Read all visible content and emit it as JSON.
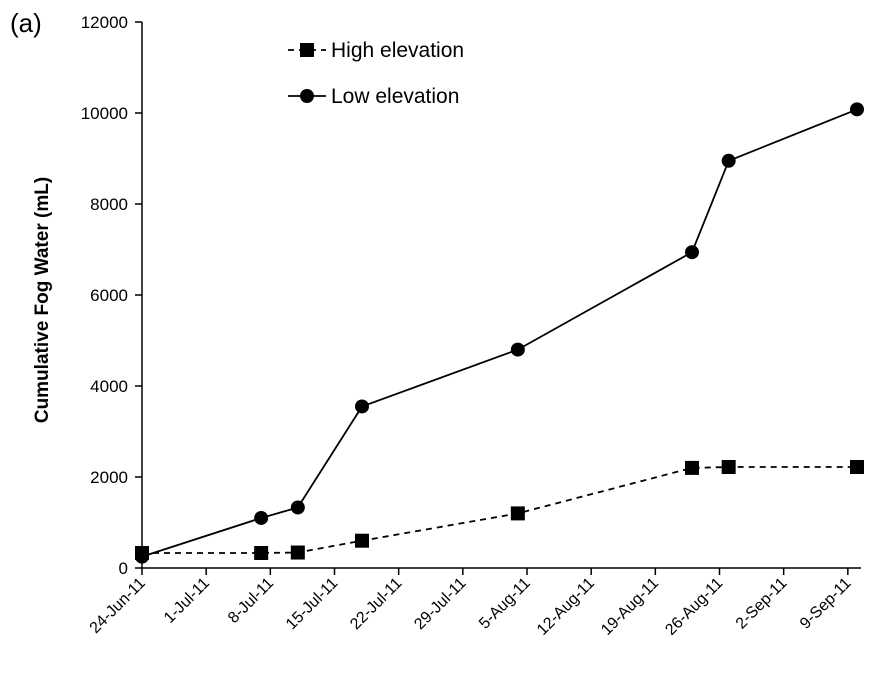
{
  "panel_label": "(a)",
  "chart_data": {
    "type": "line",
    "ylabel": "Cumulative Fog Water (mL)",
    "xlabel": "",
    "ylim": [
      0,
      12000
    ],
    "yticks": [
      0,
      2000,
      4000,
      6000,
      8000,
      10000,
      12000
    ],
    "xlim": [
      "2011-06-24",
      "2011-09-10"
    ],
    "xticks": [
      {
        "date": "2011-06-24",
        "label": "24-Jun-11"
      },
      {
        "date": "2011-07-01",
        "label": "1-Jul-11"
      },
      {
        "date": "2011-07-08",
        "label": "8-Jul-11"
      },
      {
        "date": "2011-07-15",
        "label": "15-Jul-11"
      },
      {
        "date": "2011-07-22",
        "label": "22-Jul-11"
      },
      {
        "date": "2011-07-29",
        "label": "29-Jul-11"
      },
      {
        "date": "2011-08-05",
        "label": "5-Aug-11"
      },
      {
        "date": "2011-08-12",
        "label": "12-Aug-11"
      },
      {
        "date": "2011-08-19",
        "label": "19-Aug-11"
      },
      {
        "date": "2011-08-26",
        "label": "26-Aug-11"
      },
      {
        "date": "2011-09-02",
        "label": "2-Sep-11"
      },
      {
        "date": "2011-09-09",
        "label": "9-Sep-11"
      }
    ],
    "legend_position": "top-left",
    "grid": false,
    "series": [
      {
        "name": "High elevation",
        "marker": "square",
        "line_style": "dashed",
        "color": "#000000",
        "points": [
          {
            "x": "2011-06-24",
            "y": 330
          },
          {
            "x": "2011-07-07",
            "y": 330
          },
          {
            "x": "2011-07-11",
            "y": 340
          },
          {
            "x": "2011-07-18",
            "y": 600
          },
          {
            "x": "2011-08-04",
            "y": 1200
          },
          {
            "x": "2011-08-23",
            "y": 2200
          },
          {
            "x": "2011-08-27",
            "y": 2220
          },
          {
            "x": "2011-09-10",
            "y": 2220
          }
        ]
      },
      {
        "name": "Low elevation",
        "marker": "circle",
        "line_style": "solid",
        "color": "#000000",
        "points": [
          {
            "x": "2011-06-24",
            "y": 250
          },
          {
            "x": "2011-07-07",
            "y": 1100
          },
          {
            "x": "2011-07-11",
            "y": 1330
          },
          {
            "x": "2011-07-18",
            "y": 3550
          },
          {
            "x": "2011-08-04",
            "y": 4800
          },
          {
            "x": "2011-08-23",
            "y": 6940
          },
          {
            "x": "2011-08-27",
            "y": 8950
          },
          {
            "x": "2011-09-10",
            "y": 10080
          }
        ]
      }
    ]
  }
}
